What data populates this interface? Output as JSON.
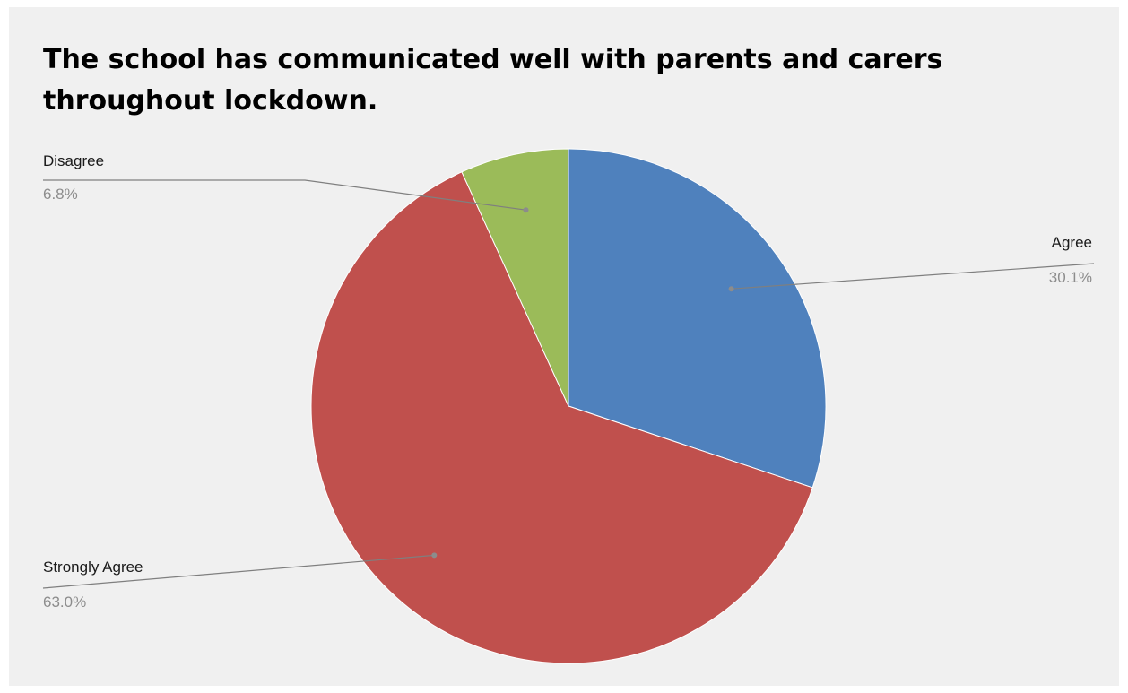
{
  "chart_data": {
    "type": "pie",
    "title": "The school has communicated well with parents and carers throughout lockdown.",
    "slices": [
      {
        "label": "Agree",
        "value": 30.1,
        "value_label": "30.1%",
        "color": "#4f81bd"
      },
      {
        "label": "Strongly Agree",
        "value": 63.0,
        "value_label": "63.0%",
        "color": "#c0504d"
      },
      {
        "label": "Disagree",
        "value": 6.8,
        "value_label": "6.8%",
        "color": "#9bbb59"
      }
    ],
    "start_angle": "12 o'clock",
    "direction": "clockwise",
    "legend": "none",
    "data_labels": "outside with leader lines"
  }
}
